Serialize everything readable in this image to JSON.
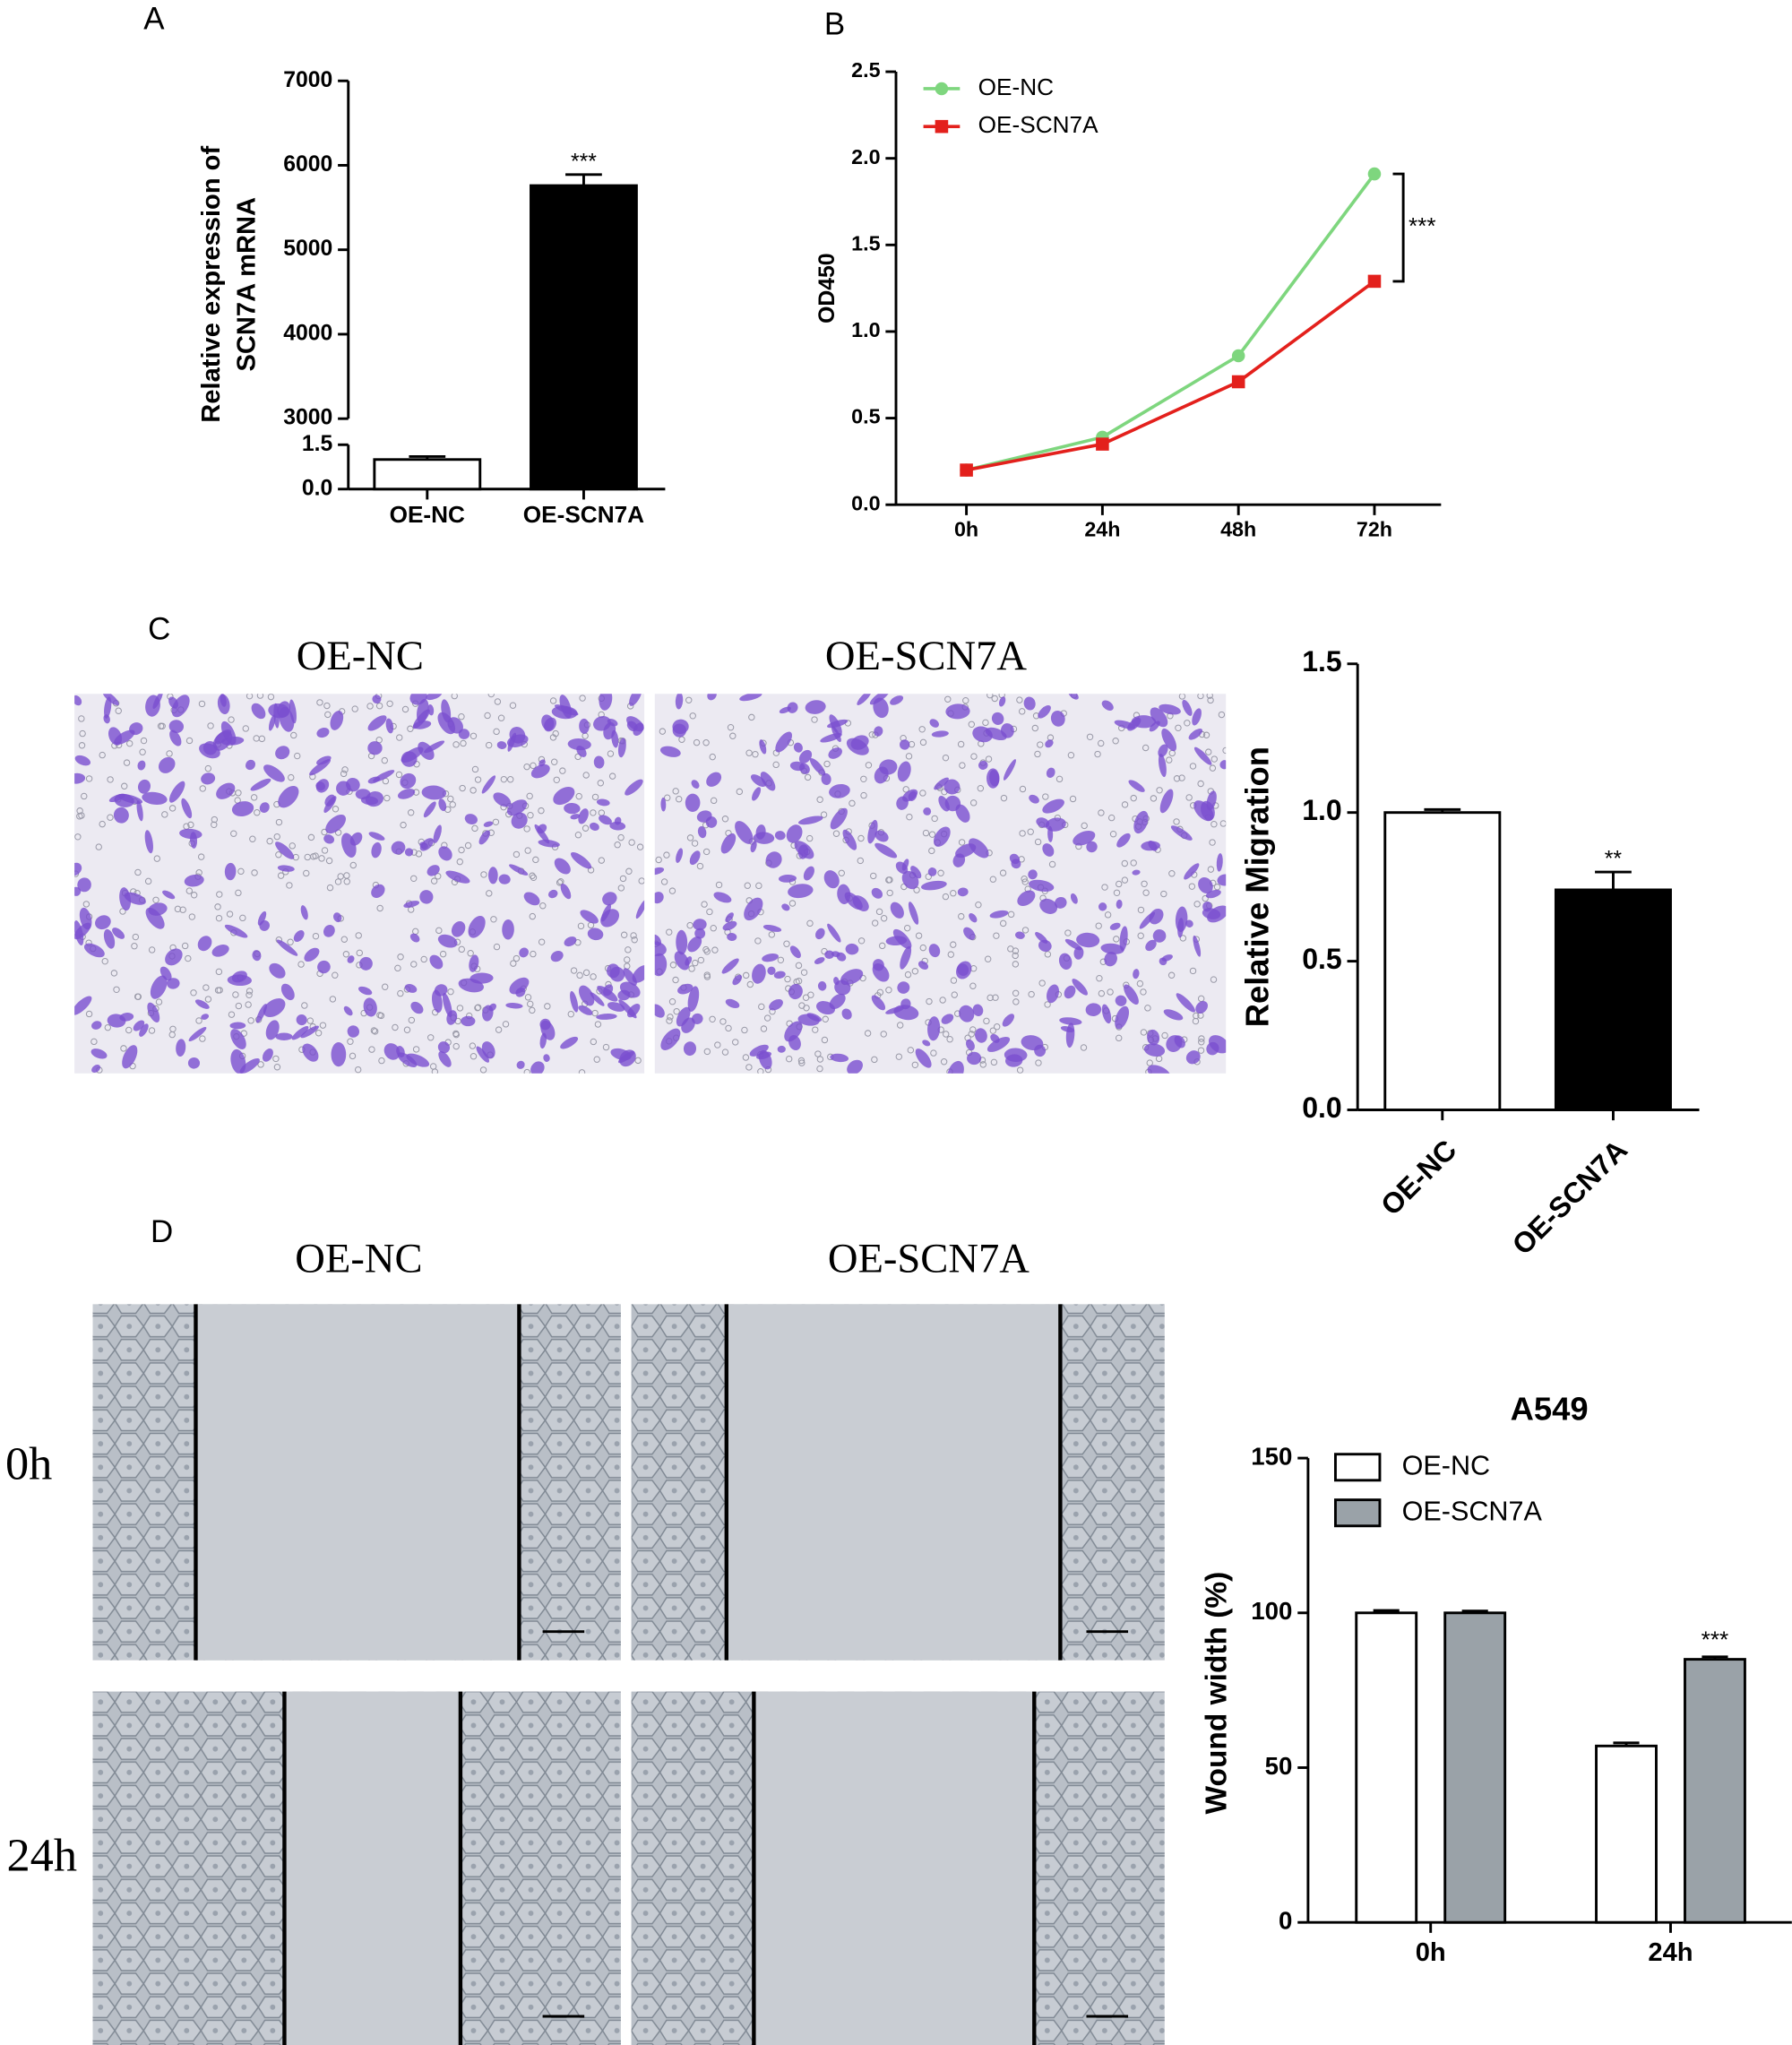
{
  "panel_letters": [
    "A",
    "B",
    "C",
    "D"
  ],
  "micrographs": {
    "migration": {
      "columns": [
        "OE-NC",
        "OE-SCN7A"
      ]
    },
    "wound_healing": {
      "columns": [
        "OE-NC",
        "OE-SCN7A"
      ],
      "rows": [
        "0h",
        "24h"
      ]
    }
  },
  "chart_data": [
    {
      "type": "bar",
      "ylabel": [
        "Relative expression of",
        "SCN7A mRNA"
      ],
      "categories": [
        "OE-NC",
        "OE-SCN7A"
      ],
      "values": [
        1.0,
        5760
      ],
      "errors": [
        0.1,
        130
      ],
      "annotations": [
        null,
        "***"
      ],
      "colors": [
        "#ffffff",
        "#000000"
      ],
      "axis_segments": [
        {
          "ylim": [
            0,
            1.5
          ],
          "yticks": [
            {
              "value": 0,
              "label": "0.0"
            },
            1.5
          ]
        },
        {
          "ylim": [
            3000,
            7000
          ],
          "yticks": [
            3000,
            4000,
            5000,
            6000,
            7000
          ]
        }
      ]
    },
    {
      "type": "line",
      "ylabel": "OD450",
      "categories": [
        "0h",
        "24h",
        "48h",
        "72h"
      ],
      "series": [
        {
          "name": "OE-NC",
          "color": "#7ed67e",
          "marker": "circle",
          "values": [
            0.2,
            0.39,
            0.86,
            1.91
          ]
        },
        {
          "name": "OE-SCN7A",
          "color": "#e3201c",
          "marker": "square",
          "values": [
            0.2,
            0.35,
            0.71,
            1.29
          ]
        }
      ],
      "ylim": [
        0,
        2.5
      ],
      "yticks": [
        {
          "value": 0,
          "label": "0.0"
        },
        0.5,
        {
          "value": 1,
          "label": "1.0"
        },
        1.5,
        {
          "value": 2,
          "label": "2.0"
        },
        2.5
      ],
      "legend": "upper left",
      "annotation": "***"
    },
    {
      "type": "bar",
      "ylabel": "Relative Migration",
      "categories": [
        "OE-NC",
        "OE-SCN7A"
      ],
      "values": [
        1.0,
        0.74
      ],
      "errors": [
        0.01,
        0.06
      ],
      "annotations": [
        null,
        "**"
      ],
      "colors": [
        "#ffffff",
        "#000000"
      ],
      "ylim": [
        0,
        1.5
      ],
      "yticks": [
        {
          "value": 0,
          "label": "0.0"
        },
        0.5,
        {
          "value": 1,
          "label": "1.0"
        },
        1.5
      ]
    },
    {
      "type": "grouped_bar",
      "title": "A549",
      "ylabel": "Wound width (%)",
      "categories": [
        "0h",
        "24h"
      ],
      "series": [
        {
          "name": "OE-NC",
          "color": "#ffffff",
          "values": [
            100,
            57
          ],
          "errors": [
            0.8,
            1
          ]
        },
        {
          "name": "OE-SCN7A",
          "color": "#9aa2a8",
          "values": [
            100,
            85
          ],
          "errors": [
            0.6,
            0.8
          ],
          "annotations": [
            null,
            "***"
          ]
        }
      ],
      "ylim": [
        0,
        150
      ],
      "yticks": [
        0,
        50,
        100,
        150
      ],
      "legend": "upper left"
    }
  ]
}
